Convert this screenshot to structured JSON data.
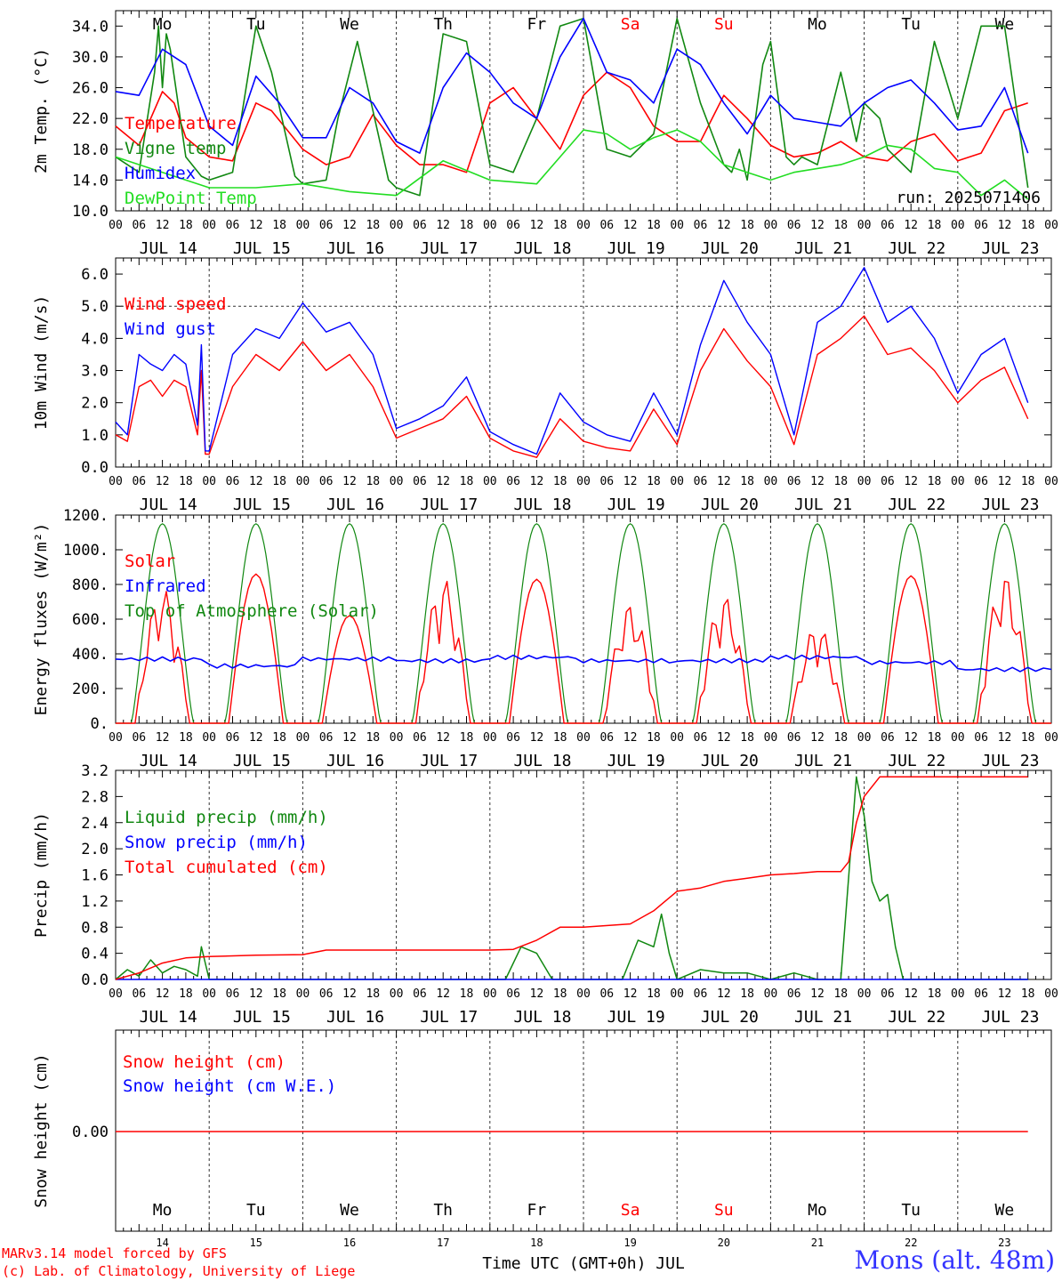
{
  "colors": {
    "red": "#ff0000",
    "green": "#118811",
    "blue": "#0000ff",
    "lightgreen": "#22dd22",
    "grid": "#555555"
  },
  "footer": {
    "credit_line1": "MARv3.14 model forced by GFS",
    "credit_line2": "(c) Lab. of Climatology, University of Liege",
    "station": "Mons (alt. 48m)"
  },
  "chart_data": {
    "type": "line",
    "x_axis": {
      "hour_ticks": [
        "00",
        "06",
        "12",
        "18"
      ],
      "last_tick": "00",
      "dates": [
        "JUL 14",
        "JUL 15",
        "JUL 16",
        "JUL 17",
        "JUL 18",
        "JUL 19",
        "JUL 20",
        "JUL 21",
        "JUL 22",
        "JUL 23"
      ],
      "weekdays": [
        "Mo",
        "Tu",
        "We",
        "Th",
        "Fr",
        "Sa",
        "Su",
        "Mo",
        "Tu",
        "We"
      ],
      "weekend_days": [
        "Sa",
        "Su"
      ],
      "day_numbers": [
        "14",
        "15",
        "16",
        "17",
        "18",
        "19",
        "20",
        "21",
        "22",
        "23"
      ],
      "label": "Time UTC (GMT+0h) JUL"
    },
    "panels": [
      {
        "id": "temperature",
        "ylabel": "2m Temp. (°C)",
        "ylim": [
          10,
          36
        ],
        "yticks": [
          "10.0",
          "14.0",
          "18.0",
          "22.0",
          "26.0",
          "30.0",
          "34.0"
        ],
        "run_label": "run: 2025071406",
        "series": [
          {
            "name": "Temperature",
            "color": "red",
            "x": [
              0,
              6,
              12,
              15,
              18,
              24,
              30,
              36,
              40,
              48,
              54,
              60,
              66,
              72,
              78,
              84,
              90,
              96,
              102,
              108,
              114,
              120,
              126,
              132,
              138,
              144,
              150,
              156,
              162,
              168,
              174,
              180,
              186,
              192,
              198,
              204,
              210,
              216,
              222,
              228,
              234
            ],
            "y": [
              21,
              18.5,
              25.5,
              24,
              19.5,
              17,
              16.5,
              24,
              23,
              18,
              16,
              17,
              22.5,
              18.5,
              16,
              16,
              15,
              24,
              26,
              22,
              18,
              25,
              28,
              26,
              21,
              19,
              19,
              25,
              22,
              18.5,
              17,
              17.5,
              19,
              17,
              16.5,
              19,
              20,
              16.5,
              17.5,
              23,
              24
            ]
          },
          {
            "name": "Vigne temp",
            "color": "green",
            "x": [
              0,
              6,
              10,
              11,
              12,
              13,
              14,
              18,
              22,
              24,
              30,
              36,
              40,
              46,
              48,
              54,
              57,
              60,
              62,
              66,
              70,
              72,
              78,
              84,
              90,
              96,
              102,
              108,
              114,
              120,
              126,
              132,
              138,
              144,
              150,
              156,
              158,
              160,
              162,
              166,
              168,
              172,
              174,
              176,
              180,
              186,
              190,
              192,
              196,
              198,
              204,
              210,
              216,
              222,
              228,
              232,
              234
            ],
            "y": [
              17,
              15,
              28,
              34,
              26,
              33,
              31,
              17,
              14.5,
              14,
              15,
              34,
              28,
              14.5,
              13.5,
              14,
              22,
              28,
              32,
              23,
              14,
              13,
              12,
              33,
              32,
              16,
              15,
              22,
              34,
              35,
              18,
              17,
              20,
              35,
              24,
              16,
              15,
              18,
              14,
              29,
              32,
              17,
              16,
              17,
              16,
              28,
              19,
              24,
              22,
              18,
              15,
              32,
              22,
              34,
              34,
              20,
              13
            ]
          },
          {
            "name": "Humidex",
            "color": "blue",
            "x": [
              0,
              6,
              12,
              18,
              24,
              30,
              36,
              42,
              48,
              54,
              60,
              66,
              72,
              78,
              84,
              90,
              96,
              102,
              108,
              114,
              120,
              126,
              132,
              138,
              144,
              150,
              156,
              162,
              168,
              174,
              180,
              186,
              192,
              198,
              204,
              210,
              216,
              222,
              228,
              234
            ],
            "y": [
              25.5,
              25,
              31,
              29,
              21,
              18.5,
              27.5,
              24,
              19.5,
              19.5,
              26,
              24,
              19,
              17.5,
              26,
              30.5,
              28,
              24,
              22,
              30,
              35,
              28,
              27,
              24,
              31,
              29,
              24,
              20,
              25,
              22,
              21.5,
              21,
              24,
              26,
              27,
              24,
              20.5,
              21,
              26,
              17.5
            ]
          },
          {
            "name": "DewPoint Temp",
            "color": "lightgreen",
            "x": [
              0,
              12,
              24,
              36,
              48,
              60,
              72,
              84,
              96,
              108,
              114,
              120,
              126,
              132,
              138,
              144,
              150,
              156,
              162,
              168,
              174,
              180,
              186,
              192,
              198,
              204,
              210,
              216,
              222,
              228,
              234
            ],
            "y": [
              17,
              15,
              13,
              13,
              13.5,
              12.5,
              12,
              16.5,
              14,
              13.5,
              17,
              20.5,
              20,
              18,
              19.5,
              20.5,
              19,
              16,
              15,
              14,
              15,
              15.5,
              16,
              17,
              18.5,
              18,
              15.5,
              15,
              12,
              14,
              11.5
            ]
          }
        ]
      },
      {
        "id": "wind",
        "ylabel": "10m Wind (m/s)",
        "ylim": [
          0,
          6.5
        ],
        "yticks": [
          "0.0",
          "1.0",
          "2.0",
          "3.0",
          "4.0",
          "5.0",
          "6.0"
        ],
        "reference_line": 5.0,
        "series": [
          {
            "name": "Wind speed",
            "color": "red",
            "x": [
              0,
              3,
              6,
              9,
              12,
              15,
              18,
              21,
              22,
              23,
              24,
              30,
              36,
              42,
              48,
              54,
              60,
              66,
              72,
              78,
              84,
              90,
              96,
              102,
              108,
              114,
              120,
              126,
              132,
              138,
              144,
              150,
              156,
              162,
              168,
              174,
              180,
              186,
              192,
              198,
              204,
              210,
              216,
              222,
              228,
              234
            ],
            "y": [
              1,
              0.8,
              2.5,
              2.7,
              2.2,
              2.7,
              2.5,
              1,
              3,
              0.4,
              0.4,
              2.5,
              3.5,
              3,
              3.9,
              3,
              3.5,
              2.5,
              0.9,
              1.2,
              1.5,
              2.2,
              0.9,
              0.5,
              0.3,
              1.5,
              0.8,
              0.6,
              0.5,
              1.8,
              0.7,
              3,
              4.3,
              3.3,
              2.5,
              0.7,
              3.5,
              4,
              4.7,
              3.5,
              3.7,
              3,
              2,
              2.7,
              3.1,
              1.5
            ]
          },
          {
            "name": "Wind gust",
            "color": "blue",
            "x": [
              0,
              3,
              6,
              9,
              12,
              15,
              18,
              21,
              22,
              23,
              24,
              30,
              36,
              42,
              48,
              54,
              60,
              66,
              72,
              78,
              84,
              90,
              96,
              102,
              108,
              114,
              120,
              126,
              132,
              138,
              144,
              150,
              156,
              162,
              168,
              174,
              180,
              186,
              192,
              198,
              204,
              210,
              216,
              222,
              228,
              234
            ],
            "y": [
              1.4,
              1,
              3.5,
              3.2,
              3,
              3.5,
              3.2,
              1.3,
              3.8,
              0.5,
              0.5,
              3.5,
              4.3,
              4,
              5.1,
              4.2,
              4.5,
              3.5,
              1.2,
              1.5,
              1.9,
              2.8,
              1.1,
              0.7,
              0.4,
              2.3,
              1.4,
              1,
              0.8,
              2.3,
              1,
              3.8,
              5.8,
              4.5,
              3.5,
              1,
              4.5,
              5,
              6.2,
              4.5,
              5,
              4,
              2.3,
              3.5,
              4,
              2
            ]
          }
        ]
      },
      {
        "id": "energy",
        "ylabel": "Energy fluxes (W/m²)",
        "ylim": [
          0,
          1200
        ],
        "yticks": [
          "0.",
          "200.",
          "400.",
          "600.",
          "800.",
          "1000.",
          "1200."
        ],
        "series": [
          {
            "name": "Solar",
            "color": "red"
          },
          {
            "name": "Infrared",
            "color": "blue"
          },
          {
            "name": "Top of Atmosphere (Solar)",
            "color": "green"
          }
        ],
        "toa_peak": 1150,
        "solar_daily_peaks": [
          780,
          860,
          620,
          840,
          830,
          690,
          740,
          570,
          850,
          860
        ],
        "infrared_levels": [
          370,
          330,
          370,
          360,
          380,
          360,
          360,
          380,
          350,
          310
        ]
      },
      {
        "id": "precip",
        "ylabel": "Precip (mm/h)",
        "ylim": [
          0,
          3.2
        ],
        "yticks": [
          "0.0",
          "0.4",
          "0.8",
          "1.2",
          "1.6",
          "2.0",
          "2.4",
          "2.8",
          "3.2"
        ],
        "series": [
          {
            "name": "Liquid precip (mm/h)",
            "color": "green",
            "x": [
              0,
              3,
              6,
              9,
              12,
              15,
              18,
              21,
              22,
              24,
              100,
              104,
              108,
              112,
              130,
              134,
              138,
              140,
              142,
              144,
              150,
              156,
              162,
              168,
              174,
              180,
              186,
              190,
              192,
              194,
              196,
              198,
              200,
              202,
              204,
              234
            ],
            "y": [
              0,
              0.15,
              0.05,
              0.3,
              0.1,
              0.2,
              0.15,
              0.05,
              0.5,
              0,
              0,
              0.5,
              0.4,
              0,
              0,
              0.6,
              0.5,
              1,
              0.4,
              0,
              0.15,
              0.1,
              0.1,
              0,
              0.1,
              0,
              0,
              3.1,
              2.5,
              1.5,
              1.2,
              1.3,
              0.5,
              0,
              0,
              0
            ]
          },
          {
            "name": "Snow precip (mm/h)",
            "color": "blue",
            "x": [
              0,
              234
            ],
            "y": [
              0,
              0
            ]
          },
          {
            "name": "Total cumulated (cm)",
            "color": "red",
            "x": [
              0,
              6,
              12,
              18,
              24,
              36,
              48,
              54,
              72,
              96,
              102,
              108,
              114,
              120,
              132,
              138,
              144,
              150,
              156,
              162,
              168,
              174,
              180,
              186,
              188,
              190,
              192,
              196,
              234
            ],
            "y": [
              0,
              0.1,
              0.25,
              0.33,
              0.35,
              0.37,
              0.38,
              0.45,
              0.45,
              0.45,
              0.46,
              0.6,
              0.8,
              0.8,
              0.85,
              1.05,
              1.35,
              1.4,
              1.5,
              1.55,
              1.6,
              1.62,
              1.65,
              1.65,
              1.8,
              2.4,
              2.8,
              3.1,
              3.1
            ]
          }
        ]
      },
      {
        "id": "snow",
        "ylabel": "Snow height (cm)",
        "yticks": [
          "0.00"
        ],
        "series": [
          {
            "name": "Snow height (cm)",
            "color": "red",
            "x": [
              0,
              234
            ],
            "y": [
              0,
              0
            ]
          },
          {
            "name": "Snow height (cm W.E.)",
            "color": "blue"
          }
        ]
      }
    ]
  }
}
